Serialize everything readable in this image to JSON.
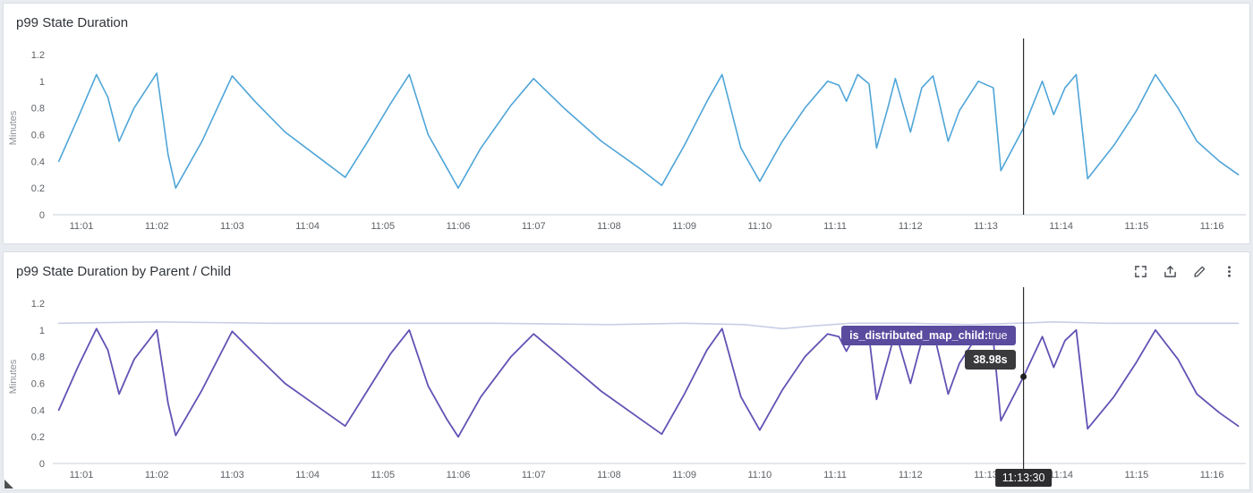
{
  "panels": [
    {
      "title": "p99 State Duration"
    },
    {
      "title": "p99 State Duration by Parent / Child",
      "toolbar": {
        "icons": [
          "expand-icon",
          "export-icon",
          "edit-icon",
          "kebab-menu-icon"
        ]
      }
    }
  ],
  "chart_data": [
    {
      "type": "line",
      "title": "p99 State Duration",
      "ylabel": "Minutes",
      "ylim": [
        0,
        1.3
      ],
      "yticks": [
        0,
        0.2,
        0.4,
        0.6,
        0.8,
        1,
        1.2
      ],
      "x_tick_labels": [
        "11:01",
        "11:02",
        "11:03",
        "11:04",
        "11:05",
        "11:06",
        "11:07",
        "11:08",
        "11:09",
        "11:10",
        "11:11",
        "11:12",
        "11:13",
        "11:14",
        "11:15",
        "11:16"
      ],
      "x_tick_start_minute": 1,
      "x_range": [
        0.62,
        16.45
      ],
      "grid": false,
      "series": [
        {
          "color": "#4fa5d8",
          "width": 1.6,
          "points": [
            [
              0.7,
              0.4
            ],
            [
              0.95,
              0.72
            ],
            [
              1.2,
              1.05
            ],
            [
              1.35,
              0.88
            ],
            [
              1.5,
              0.55
            ],
            [
              1.7,
              0.8
            ],
            [
              2.0,
              1.06
            ],
            [
              2.15,
              0.45
            ],
            [
              2.25,
              0.2
            ],
            [
              2.6,
              0.55
            ],
            [
              3.0,
              1.04
            ],
            [
              3.3,
              0.85
            ],
            [
              3.7,
              0.62
            ],
            [
              4.1,
              0.45
            ],
            [
              4.5,
              0.28
            ],
            [
              4.8,
              0.55
            ],
            [
              5.1,
              0.83
            ],
            [
              5.35,
              1.05
            ],
            [
              5.6,
              0.6
            ],
            [
              5.85,
              0.35
            ],
            [
              6.0,
              0.2
            ],
            [
              6.3,
              0.5
            ],
            [
              6.7,
              0.82
            ],
            [
              7.0,
              1.02
            ],
            [
              7.4,
              0.8
            ],
            [
              7.9,
              0.55
            ],
            [
              8.4,
              0.35
            ],
            [
              8.7,
              0.22
            ],
            [
              9.0,
              0.52
            ],
            [
              9.3,
              0.85
            ],
            [
              9.5,
              1.05
            ],
            [
              9.75,
              0.5
            ],
            [
              10.0,
              0.25
            ],
            [
              10.3,
              0.55
            ],
            [
              10.6,
              0.8
            ],
            [
              10.9,
              1.0
            ],
            [
              11.05,
              0.97
            ],
            [
              11.15,
              0.85
            ],
            [
              11.3,
              1.05
            ],
            [
              11.45,
              0.98
            ],
            [
              11.55,
              0.5
            ],
            [
              11.7,
              0.8
            ],
            [
              11.8,
              1.02
            ],
            [
              12.0,
              0.62
            ],
            [
              12.15,
              0.95
            ],
            [
              12.3,
              1.04
            ],
            [
              12.5,
              0.55
            ],
            [
              12.65,
              0.78
            ],
            [
              12.9,
              1.0
            ],
            [
              13.1,
              0.95
            ],
            [
              13.2,
              0.33
            ],
            [
              13.5,
              0.65
            ],
            [
              13.75,
              1.0
            ],
            [
              13.9,
              0.75
            ],
            [
              14.05,
              0.95
            ],
            [
              14.2,
              1.05
            ],
            [
              14.35,
              0.27
            ],
            [
              14.7,
              0.52
            ],
            [
              15.0,
              0.78
            ],
            [
              15.25,
              1.05
            ],
            [
              15.55,
              0.8
            ],
            [
              15.8,
              0.55
            ],
            [
              16.1,
              0.4
            ],
            [
              16.35,
              0.3
            ]
          ]
        }
      ],
      "crosshair": {
        "t": 13.5
      }
    },
    {
      "type": "line",
      "title": "p99 State Duration by Parent / Child",
      "ylabel": "Minutes",
      "ylim": [
        0,
        1.3
      ],
      "yticks": [
        0,
        0.2,
        0.4,
        0.6,
        0.8,
        1,
        1.2
      ],
      "x_tick_labels": [
        "11:01",
        "11:02",
        "11:03",
        "11:04",
        "11:05",
        "11:06",
        "11:07",
        "11:08",
        "11:09",
        "11:10",
        "11:11",
        "11:12",
        "11:13",
        "11:14",
        "11:15",
        "11:16"
      ],
      "x_tick_start_minute": 1,
      "x_range": [
        0.62,
        16.45
      ],
      "grid": false,
      "series": [
        {
          "color": "#c9cee6",
          "width": 1.6,
          "points": [
            [
              0.7,
              1.05
            ],
            [
              2.0,
              1.06
            ],
            [
              3.5,
              1.05
            ],
            [
              5.0,
              1.05
            ],
            [
              6.5,
              1.05
            ],
            [
              8.0,
              1.04
            ],
            [
              9.0,
              1.05
            ],
            [
              9.8,
              1.04
            ],
            [
              10.3,
              1.01
            ],
            [
              10.7,
              1.03
            ],
            [
              11.2,
              1.05
            ],
            [
              12.0,
              1.05
            ],
            [
              12.8,
              1.04
            ],
            [
              13.4,
              1.05
            ],
            [
              13.9,
              1.06
            ],
            [
              14.6,
              1.05
            ],
            [
              15.5,
              1.05
            ],
            [
              16.35,
              1.05
            ]
          ]
        },
        {
          "color": "#6152b4",
          "width": 1.8,
          "points": [
            [
              0.7,
              0.4
            ],
            [
              0.95,
              0.72
            ],
            [
              1.2,
              1.01
            ],
            [
              1.35,
              0.85
            ],
            [
              1.5,
              0.52
            ],
            [
              1.7,
              0.78
            ],
            [
              2.0,
              1.0
            ],
            [
              2.15,
              0.45
            ],
            [
              2.25,
              0.21
            ],
            [
              2.6,
              0.55
            ],
            [
              3.0,
              0.99
            ],
            [
              3.3,
              0.82
            ],
            [
              3.7,
              0.6
            ],
            [
              4.1,
              0.44
            ],
            [
              4.5,
              0.28
            ],
            [
              4.8,
              0.55
            ],
            [
              5.1,
              0.82
            ],
            [
              5.35,
              1.0
            ],
            [
              5.6,
              0.58
            ],
            [
              5.85,
              0.33
            ],
            [
              6.0,
              0.2
            ],
            [
              6.3,
              0.5
            ],
            [
              6.7,
              0.8
            ],
            [
              7.0,
              0.97
            ],
            [
              7.4,
              0.78
            ],
            [
              7.9,
              0.54
            ],
            [
              8.4,
              0.34
            ],
            [
              8.7,
              0.22
            ],
            [
              9.0,
              0.52
            ],
            [
              9.3,
              0.85
            ],
            [
              9.5,
              1.01
            ],
            [
              9.75,
              0.5
            ],
            [
              10.0,
              0.25
            ],
            [
              10.3,
              0.55
            ],
            [
              10.6,
              0.8
            ],
            [
              10.9,
              0.97
            ],
            [
              11.05,
              0.95
            ],
            [
              11.15,
              0.84
            ],
            [
              11.3,
              1.0
            ],
            [
              11.45,
              0.95
            ],
            [
              11.55,
              0.48
            ],
            [
              11.7,
              0.78
            ],
            [
              11.8,
              0.99
            ],
            [
              12.0,
              0.6
            ],
            [
              12.15,
              0.92
            ],
            [
              12.3,
              1.0
            ],
            [
              12.5,
              0.52
            ],
            [
              12.65,
              0.75
            ],
            [
              12.9,
              0.97
            ],
            [
              13.1,
              0.92
            ],
            [
              13.2,
              0.32
            ],
            [
              13.5,
              0.65
            ],
            [
              13.75,
              0.95
            ],
            [
              13.9,
              0.72
            ],
            [
              14.05,
              0.92
            ],
            [
              14.2,
              1.0
            ],
            [
              14.35,
              0.26
            ],
            [
              14.7,
              0.5
            ],
            [
              15.0,
              0.76
            ],
            [
              15.25,
              1.0
            ],
            [
              15.55,
              0.78
            ],
            [
              15.8,
              0.52
            ],
            [
              16.1,
              0.38
            ],
            [
              16.35,
              0.28
            ]
          ]
        }
      ],
      "crosshair": {
        "t": 13.5,
        "marker_v": 0.65,
        "extend_below": true
      },
      "tooltip": {
        "series_label": "is_distributed_map_child:",
        "series_value": "true",
        "value": "38.98s",
        "time_label": "11:13:30"
      }
    }
  ]
}
